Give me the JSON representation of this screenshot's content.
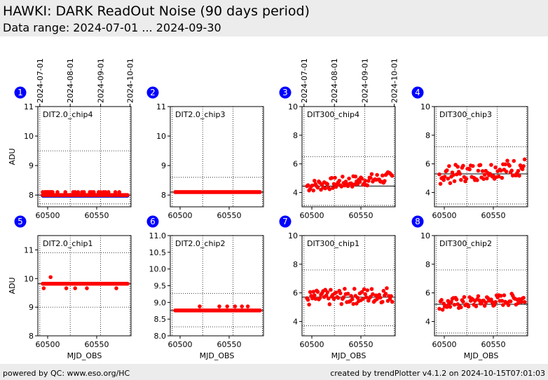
{
  "header": {
    "title": "HAWKI: DARK ReadOut Noise (90 days period)",
    "subtitle": "Data range: 2024-07-01 ... 2024-09-30"
  },
  "footer": {
    "left": "powered by QC: www.eso.org/HC",
    "right": "created by trendPlotter v4.1.2 on 2024-10-15T07:01:03"
  },
  "colors": {
    "point": "#ff0000",
    "fail_point": "#0000cc",
    "badge": "#0000ff",
    "header_bg": "#ececec"
  },
  "date_ticks": [
    "2024-07-01",
    "2024-08-01",
    "2024-09-01",
    "2024-10-01"
  ],
  "chart_data": [
    {
      "id": "1",
      "type": "scatter",
      "label": "DIT2.0_chip4",
      "ylabel": "ADU",
      "xlabel": "",
      "xlim": [
        60490,
        60585
      ],
      "ylim": [
        7.6,
        11
      ],
      "yticks": [
        8,
        9,
        10,
        11
      ],
      "xticks": [
        60500,
        60550
      ],
      "ref_line": 8.0,
      "thresholds": [
        7.7,
        9.5
      ],
      "mode": "const",
      "base": 8.0,
      "blue_base": 7.98,
      "x": [
        60495,
        60497,
        60498,
        60499,
        60500,
        60501,
        60502,
        60503,
        60504,
        60505,
        60510,
        60518,
        60526,
        60528,
        60531,
        60535,
        60537,
        60543,
        60545,
        60547,
        60552,
        60554,
        60557,
        60559,
        60562,
        60569,
        60573
      ],
      "y": [
        8.1,
        8.1,
        8.1,
        8.1,
        8.1,
        8.1,
        8.1,
        8.1,
        8.1,
        8.1,
        8.1,
        8.1,
        8.1,
        8.1,
        8.1,
        8.1,
        8.1,
        8.1,
        8.1,
        8.1,
        8.1,
        8.1,
        8.1,
        8.1,
        8.1,
        8.1,
        8.1
      ]
    },
    {
      "id": "2",
      "type": "scatter",
      "label": "DIT2.0_chip3",
      "ylabel": "",
      "xlabel": "",
      "xlim": [
        60490,
        60585
      ],
      "ylim": [
        7.6,
        11
      ],
      "yticks": [
        8,
        9,
        10,
        11
      ],
      "xticks": [
        60500,
        60550
      ],
      "ref_line": 8.1,
      "thresholds": [
        7.6,
        8.6
      ],
      "mode": "const",
      "base": 8.1,
      "x": [],
      "y": []
    },
    {
      "id": "3",
      "type": "scatter",
      "label": "DIT300_chip4",
      "ylabel": "",
      "xlabel": "",
      "xlim": [
        60490,
        60585
      ],
      "ylim": [
        3,
        10
      ],
      "yticks": [
        4,
        6,
        8,
        10
      ],
      "xticks": [
        60500,
        60550
      ],
      "ref_line": 4.45,
      "thresholds": [
        3.1,
        6.5
      ],
      "mode": "scatter",
      "base": 4.45,
      "spread": 0.3,
      "trend": 0.6,
      "x": [],
      "y": []
    },
    {
      "id": "4",
      "type": "scatter",
      "label": "DIT300_chip3",
      "ylabel": "",
      "xlabel": "",
      "xlim": [
        60490,
        60585
      ],
      "ylim": [
        3,
        10
      ],
      "yticks": [
        4,
        6,
        8,
        10
      ],
      "xticks": [
        60500,
        60550
      ],
      "ref_line": 5.3,
      "thresholds": [
        3.2,
        7.2
      ],
      "mode": "scatter",
      "base": 5.2,
      "spread": 0.45,
      "trend": 0.6,
      "x": [],
      "y": []
    },
    {
      "id": "5",
      "type": "scatter",
      "label": "DIT2.0_chip1",
      "ylabel": "ADU",
      "xlabel": "MJD_OBS",
      "xlim": [
        60490,
        60585
      ],
      "ylim": [
        8,
        11.5
      ],
      "yticks": [
        8,
        9,
        10,
        11
      ],
      "xticks": [
        60500,
        60550
      ],
      "ref_line": 9.82,
      "thresholds": [
        9.0,
        10.9
      ],
      "mode": "const",
      "base": 9.82,
      "x": [
        60496,
        60503,
        60519,
        60528,
        60540,
        60570
      ],
      "y": [
        9.66,
        10.05,
        9.66,
        9.66,
        9.66,
        9.66
      ]
    },
    {
      "id": "6",
      "type": "scatter",
      "label": "DIT2.0_chip2",
      "ylabel": "",
      "xlabel": "MJD_OBS",
      "xlim": [
        60490,
        60585
      ],
      "ylim": [
        8,
        11
      ],
      "yticks": [
        8.0,
        8.5,
        9.0,
        9.5,
        10.0,
        10.5,
        11.0
      ],
      "xticks": [
        60500,
        60550
      ],
      "ref_line": 8.76,
      "thresholds": [
        8.27,
        9.27
      ],
      "mode": "const",
      "base": 8.76,
      "x": [
        60520,
        60540,
        60548,
        60556,
        60563,
        60569
      ],
      "y": [
        8.88,
        8.88,
        8.88,
        8.88,
        8.88,
        8.88
      ]
    },
    {
      "id": "7",
      "type": "scatter",
      "label": "DIT300_chip1",
      "ylabel": "",
      "xlabel": "MJD_OBS",
      "xlim": [
        60490,
        60585
      ],
      "ylim": [
        3,
        10
      ],
      "yticks": [
        4,
        6,
        8,
        10
      ],
      "xticks": [
        60500,
        60550
      ],
      "ref_line": 5.7,
      "thresholds": [
        3.7,
        7.6
      ],
      "mode": "scatter",
      "base": 5.6,
      "spread": 0.4,
      "trend": 0.3,
      "x": [],
      "y": []
    },
    {
      "id": "8",
      "type": "scatter",
      "label": "DIT300_chip2",
      "ylabel": "",
      "xlabel": "MJD_OBS",
      "xlim": [
        60490,
        60585
      ],
      "ylim": [
        3,
        10
      ],
      "yticks": [
        4,
        6,
        8,
        10
      ],
      "xticks": [
        60500,
        60550
      ],
      "ref_line": 5.2,
      "thresholds": [
        3.2,
        7.6
      ],
      "mode": "scatter",
      "base": 5.2,
      "spread": 0.3,
      "trend": 0.4,
      "x": [],
      "y": []
    }
  ]
}
